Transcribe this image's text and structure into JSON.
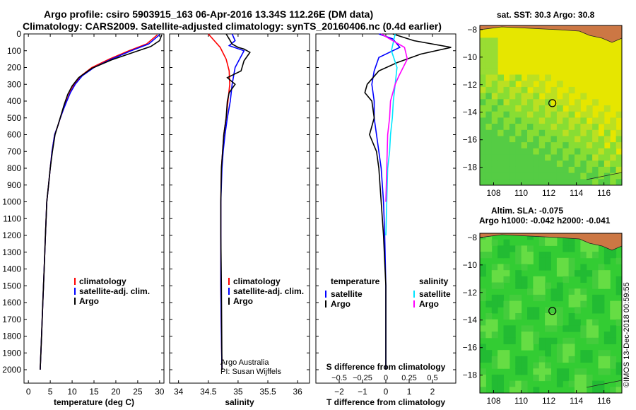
{
  "header": {
    "line1": "Argo profile: csiro 5903915_163 06-Apr-2016 13.34S 112.26E (DM data)",
    "line2": "Climatology: CARS2009. Satellite-adjusted climatology: synTS_20160406.nc (0.4d earlier)"
  },
  "colors": {
    "climatology": "#ff0000",
    "satellite": "#0000ff",
    "argo": "#000000",
    "salinity_satellite": "#00e5ff",
    "salinity_argo": "#ff00ff",
    "sst_field": "#e6e600",
    "sla_field": "#33cc33",
    "land": "#cc7744"
  },
  "chart_data": [
    {
      "type": "line",
      "name": "temperature-profile",
      "xlabel": "temperature (deg C)",
      "ylabel": "",
      "xlim": [
        -1,
        31
      ],
      "ylim": [
        2080,
        0
      ],
      "xticks": [
        0,
        5,
        10,
        15,
        20,
        25,
        30
      ],
      "yticks": [
        0,
        100,
        200,
        300,
        400,
        500,
        600,
        700,
        800,
        900,
        1000,
        1100,
        1200,
        1300,
        1400,
        1500,
        1600,
        1700,
        1800,
        1900,
        2000
      ],
      "legend": [
        "climatology",
        "satellite-adj. clim.",
        "Argo"
      ],
      "legend_position": "bottom-center",
      "series": [
        {
          "name": "climatology",
          "color": "#ff0000",
          "x": [
            29.5,
            27,
            23,
            18.5,
            14.5,
            12,
            10.5,
            9.5,
            8.7,
            8,
            7.3,
            6.7,
            6,
            5.4,
            5,
            4.6,
            4.2,
            3.9,
            3.6,
            3.3,
            3,
            2.7
          ],
          "y": [
            5,
            60,
            100,
            150,
            200,
            250,
            300,
            350,
            400,
            450,
            500,
            550,
            600,
            700,
            800,
            900,
            1000,
            1200,
            1400,
            1600,
            1800,
            2000
          ]
        },
        {
          "name": "satellite-adj. clim.",
          "color": "#0000ff",
          "x": [
            30,
            27.5,
            23.5,
            19,
            15,
            12.3,
            10.7,
            9.6,
            8.8,
            8,
            7.3,
            6.7,
            6,
            5.4,
            5,
            4.6,
            4.2,
            3.9,
            3.6,
            3.3,
            3,
            2.7
          ],
          "y": [
            5,
            60,
            100,
            150,
            200,
            250,
            300,
            350,
            400,
            450,
            500,
            550,
            600,
            700,
            800,
            900,
            1000,
            1200,
            1400,
            1600,
            1800,
            2000
          ]
        },
        {
          "name": "Argo",
          "color": "#000000",
          "x": [
            30.5,
            30,
            28,
            24,
            19,
            14.5,
            11.5,
            10,
            9,
            8.2,
            7.5,
            6.8,
            6.1,
            5.5,
            5,
            4.6,
            4.2,
            3.9,
            3.6,
            3.3,
            3,
            2.7
          ],
          "y": [
            5,
            40,
            75,
            110,
            155,
            205,
            260,
            310,
            360,
            420,
            480,
            540,
            600,
            700,
            800,
            900,
            1000,
            1200,
            1400,
            1600,
            1800,
            2000
          ]
        }
      ]
    },
    {
      "type": "line",
      "name": "salinity-profile",
      "xlabel": "salinity",
      "ylabel": "",
      "xlim": [
        33.85,
        36.2
      ],
      "ylim": [
        2080,
        0
      ],
      "xticks": [
        34,
        34.5,
        35,
        35.5,
        36
      ],
      "legend": [
        "climatology",
        "satellite-adj. clim.",
        "Argo"
      ],
      "legend_position": "bottom-center",
      "annotation": [
        "Argo Australia",
        "PI: Susan Wijffels"
      ],
      "series": [
        {
          "name": "climatology",
          "color": "#ff0000",
          "x": [
            34.5,
            34.7,
            34.8,
            34.85,
            34.86,
            34.83,
            34.8,
            34.76,
            34.74,
            34.72,
            34.71,
            34.71,
            34.71,
            34.72,
            34.73
          ],
          "y": [
            0,
            80,
            150,
            220,
            300,
            400,
            500,
            600,
            700,
            800,
            1000,
            1200,
            1500,
            1800,
            2000
          ]
        },
        {
          "name": "satellite-adj. clim.",
          "color": "#0000ff",
          "x": [
            34.9,
            34.95,
            34.85,
            35.1,
            34.95,
            34.9,
            34.87,
            34.82,
            34.78,
            34.75,
            34.73,
            34.71,
            34.71,
            34.71,
            34.72,
            34.73
          ],
          "y": [
            0,
            40,
            70,
            100,
            200,
            300,
            400,
            500,
            600,
            700,
            800,
            1000,
            1200,
            1500,
            1800,
            2000
          ]
        },
        {
          "name": "Argo",
          "color": "#000000",
          "x": [
            34.8,
            34.85,
            34.9,
            35.0,
            35.1,
            35.2,
            35.1,
            35.05,
            34.82,
            34.95,
            34.85,
            34.82,
            34.8,
            34.76,
            34.74,
            34.72,
            34.71,
            34.71,
            34.72,
            34.73
          ],
          "y": [
            0,
            30,
            60,
            80,
            90,
            110,
            160,
            220,
            260,
            300,
            350,
            400,
            500,
            600,
            700,
            800,
            1000,
            1200,
            1500,
            2000
          ]
        }
      ]
    },
    {
      "type": "line",
      "name": "difference-profile",
      "xlabel": "T difference from climatology",
      "x2label": "S difference from climatology",
      "ylabel": "",
      "xlim": [
        -3,
        3
      ],
      "ylim": [
        2080,
        0
      ],
      "xticks": [
        -2,
        -1,
        0,
        1,
        2
      ],
      "x2lim": [
        -0.75,
        0.75
      ],
      "x2ticks": [
        -0.5,
        -0.25,
        0,
        0.25,
        0.5
      ],
      "legend_left": {
        "heading": "temperature",
        "entries": [
          "satellite",
          "Argo"
        ]
      },
      "legend_right": {
        "heading": "salinity",
        "entries": [
          "satellite",
          "Argo"
        ]
      },
      "series": [
        {
          "name": "T satellite",
          "axis": "T",
          "color": "#0000ff",
          "x": [
            -0.3,
            0.3,
            0.6,
            -0.3,
            -0.5,
            -0.6,
            -0.5,
            -0.5,
            -0.4,
            -0.3,
            -0.2,
            -0.1,
            -0.05,
            0,
            0
          ],
          "y": [
            0,
            30,
            80,
            140,
            220,
            300,
            400,
            500,
            600,
            700,
            800,
            1000,
            1200,
            1500,
            2000
          ]
        },
        {
          "name": "T Argo",
          "axis": "T",
          "color": "#000000",
          "x": [
            0.3,
            1.2,
            2.8,
            1.5,
            0.5,
            -0.3,
            -0.8,
            -0.9,
            -0.6,
            -0.5,
            -0.7,
            -0.4,
            -0.3,
            -0.2,
            -0.1,
            0,
            0
          ],
          "y": [
            0,
            40,
            80,
            120,
            170,
            220,
            300,
            350,
            400,
            500,
            600,
            700,
            800,
            1000,
            1200,
            1500,
            2000
          ]
        },
        {
          "name": "S satellite",
          "axis": "S",
          "color": "#00e5ff",
          "x": [
            0.1,
            0.06,
            0.12,
            0.1,
            0.08,
            0.07,
            0.05,
            0.04,
            0.02,
            0.01,
            0
          ],
          "y": [
            0,
            100,
            200,
            300,
            400,
            500,
            600,
            700,
            800,
            1000,
            1200
          ]
        },
        {
          "name": "S Argo",
          "axis": "S",
          "color": "#ff00ff",
          "x": [
            -0.05,
            0.2,
            0.23,
            0.14,
            0.1,
            0.05,
            0.04,
            0.02,
            0.01,
            0
          ],
          "y": [
            0,
            80,
            150,
            250,
            300,
            400,
            500,
            600,
            800,
            1000
          ]
        }
      ]
    },
    {
      "type": "heatmap",
      "name": "sst-map",
      "title": "sat. SST: 30.3 Argo: 30.8",
      "xticks": [
        108,
        110,
        112,
        114,
        116
      ],
      "yticks": [
        -8,
        -10,
        -12,
        -14,
        -16,
        -18
      ],
      "xlim": [
        107,
        117.3
      ],
      "ylim": [
        -19.3,
        -7.7
      ],
      "marker": {
        "lon": 112.26,
        "lat": -13.34
      }
    },
    {
      "type": "heatmap",
      "name": "sla-map",
      "title_line1": "Altim. SLA: -0.075",
      "title_line2": "Argo h1000: -0.042 h2000: -0.041",
      "xticks": [
        108,
        110,
        112,
        114,
        116
      ],
      "yticks": [
        -8,
        -10,
        -12,
        -14,
        -16,
        -18
      ],
      "xlim": [
        107,
        117.3
      ],
      "ylim": [
        -19.3,
        -7.7
      ],
      "marker": {
        "lon": 112.26,
        "lat": -13.34
      }
    }
  ],
  "watermark": "©IMOS 13-Dec-2018 00:59:55"
}
